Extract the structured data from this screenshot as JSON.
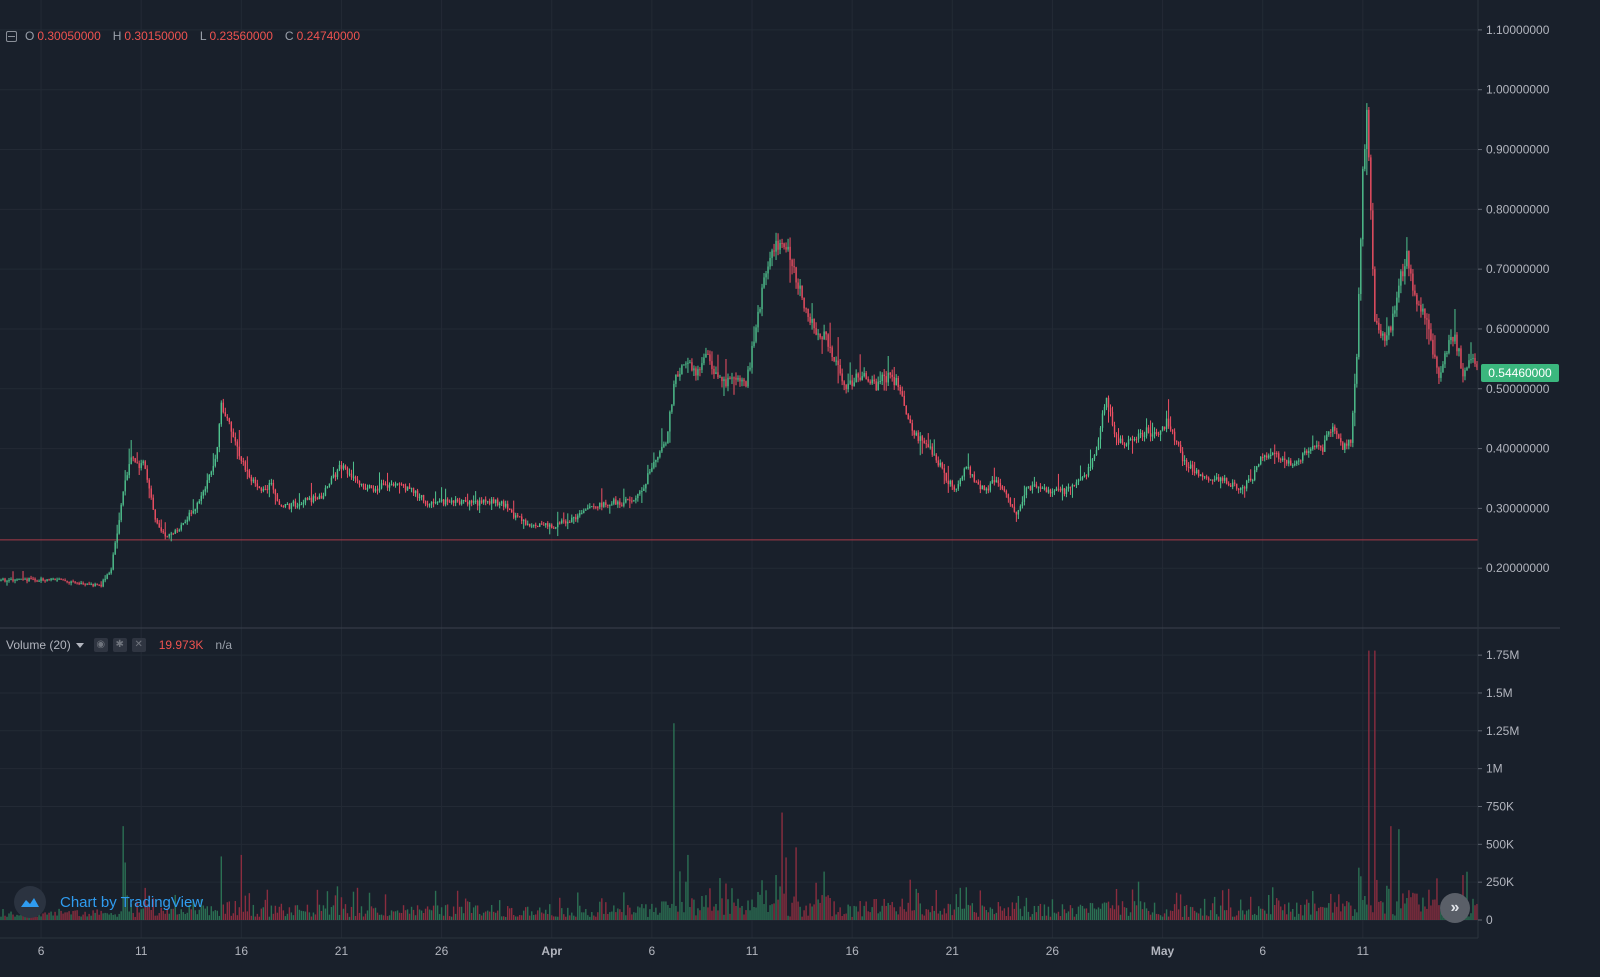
{
  "ohlc": {
    "o_label": "O",
    "o_value": "0.30050000",
    "h_label": "H",
    "h_value": "0.30150000",
    "l_label": "L",
    "l_value": "0.23560000",
    "c_label": "C",
    "c_value": "0.24740000"
  },
  "volume_legend": {
    "name": "Volume (20)",
    "value": "19.973K",
    "secondary": "n/a"
  },
  "last_price": "0.54460000",
  "brand": "Chart by TradingView",
  "colors": {
    "background": "#19202b",
    "grid": "#232a35",
    "up": "#4fc28e",
    "down": "#ef4f63",
    "up_volume": "#2b7053",
    "down_volume": "#8a2d3f",
    "price_line": "#a83a48",
    "axis_text": "#b2b5be",
    "accent": "#2f9cf0"
  },
  "chart_data": [
    {
      "type": "candlestick",
      "name": "price",
      "ylim": [
        0.1,
        1.15
      ],
      "y_ticks": [
        "1.10000000",
        "1.00000000",
        "0.90000000",
        "0.80000000",
        "0.70000000",
        "0.60000000",
        "0.50000000",
        "0.40000000",
        "0.30000000",
        "0.20000000"
      ],
      "y_tick_values": [
        1.1,
        1.0,
        0.9,
        0.8,
        0.7,
        0.6,
        0.5,
        0.4,
        0.3,
        0.2
      ],
      "x_ticks": [
        "6",
        "11",
        "16",
        "21",
        "26",
        "Apr",
        "6",
        "11",
        "16",
        "21",
        "26",
        "May",
        "6",
        "11"
      ],
      "x_tick_index": [
        20,
        70,
        120,
        170,
        220,
        275,
        325,
        375,
        425,
        475,
        525,
        580,
        630,
        680
      ],
      "horizontal_line": 0.2474,
      "grid": true,
      "last_price": 0.5446
    },
    {
      "type": "bar",
      "name": "Volume",
      "ylim": [
        0,
        1850000
      ],
      "y_ticks": [
        "1.75M",
        "1.5M",
        "1.25M",
        "1M",
        "750K",
        "500K",
        "250K",
        "0"
      ],
      "y_tick_values": [
        1750000,
        1500000,
        1250000,
        1000000,
        750000,
        500000,
        250000,
        0
      ],
      "grid": true
    }
  ],
  "anchors": [
    [
      0,
      0.18
    ],
    [
      28,
      0.18
    ],
    [
      50,
      0.17
    ],
    [
      55,
      0.2
    ],
    [
      58,
      0.26
    ],
    [
      62,
      0.35
    ],
    [
      65,
      0.38
    ],
    [
      72,
      0.37
    ],
    [
      77,
      0.28
    ],
    [
      82,
      0.25
    ],
    [
      87,
      0.26
    ],
    [
      92,
      0.28
    ],
    [
      97,
      0.3
    ],
    [
      102,
      0.33
    ],
    [
      107,
      0.38
    ],
    [
      110,
      0.47
    ],
    [
      115,
      0.43
    ],
    [
      120,
      0.38
    ],
    [
      125,
      0.35
    ],
    [
      130,
      0.33
    ],
    [
      135,
      0.34
    ],
    [
      140,
      0.3
    ],
    [
      150,
      0.31
    ],
    [
      160,
      0.32
    ],
    [
      165,
      0.35
    ],
    [
      170,
      0.37
    ],
    [
      175,
      0.35
    ],
    [
      185,
      0.33
    ],
    [
      195,
      0.34
    ],
    [
      205,
      0.33
    ],
    [
      212,
      0.31
    ],
    [
      220,
      0.31
    ],
    [
      235,
      0.31
    ],
    [
      245,
      0.31
    ],
    [
      250,
      0.31
    ],
    [
      255,
      0.29
    ],
    [
      265,
      0.27
    ],
    [
      275,
      0.27
    ],
    [
      285,
      0.28
    ],
    [
      295,
      0.3
    ],
    [
      305,
      0.31
    ],
    [
      315,
      0.31
    ],
    [
      320,
      0.33
    ],
    [
      327,
      0.38
    ],
    [
      332,
      0.41
    ],
    [
      337,
      0.52
    ],
    [
      342,
      0.55
    ],
    [
      347,
      0.52
    ],
    [
      352,
      0.56
    ],
    [
      357,
      0.52
    ],
    [
      362,
      0.51
    ],
    [
      367,
      0.52
    ],
    [
      372,
      0.5
    ],
    [
      377,
      0.6
    ],
    [
      382,
      0.7
    ],
    [
      387,
      0.73
    ],
    [
      392,
      0.74
    ],
    [
      397,
      0.69
    ],
    [
      402,
      0.63
    ],
    [
      407,
      0.6
    ],
    [
      412,
      0.58
    ],
    [
      417,
      0.54
    ],
    [
      422,
      0.5
    ],
    [
      427,
      0.52
    ],
    [
      432,
      0.52
    ],
    [
      437,
      0.5
    ],
    [
      442,
      0.52
    ],
    [
      447,
      0.51
    ],
    [
      452,
      0.46
    ],
    [
      457,
      0.42
    ],
    [
      462,
      0.41
    ],
    [
      467,
      0.38
    ],
    [
      472,
      0.35
    ],
    [
      477,
      0.33
    ],
    [
      482,
      0.37
    ],
    [
      487,
      0.34
    ],
    [
      492,
      0.33
    ],
    [
      497,
      0.35
    ],
    [
      502,
      0.32
    ],
    [
      507,
      0.29
    ],
    [
      512,
      0.33
    ],
    [
      517,
      0.34
    ],
    [
      522,
      0.33
    ],
    [
      527,
      0.33
    ],
    [
      532,
      0.33
    ],
    [
      537,
      0.34
    ],
    [
      542,
      0.36
    ],
    [
      547,
      0.4
    ],
    [
      552,
      0.49
    ],
    [
      557,
      0.41
    ],
    [
      562,
      0.41
    ],
    [
      567,
      0.42
    ],
    [
      572,
      0.43
    ],
    [
      577,
      0.42
    ],
    [
      582,
      0.44
    ],
    [
      587,
      0.41
    ],
    [
      592,
      0.37
    ],
    [
      597,
      0.36
    ],
    [
      602,
      0.35
    ],
    [
      610,
      0.35
    ],
    [
      618,
      0.33
    ],
    [
      625,
      0.35
    ],
    [
      630,
      0.39
    ],
    [
      635,
      0.39
    ],
    [
      640,
      0.38
    ],
    [
      645,
      0.37
    ],
    [
      650,
      0.39
    ],
    [
      655,
      0.4
    ],
    [
      660,
      0.4
    ],
    [
      665,
      0.44
    ],
    [
      670,
      0.4
    ],
    [
      674,
      0.41
    ],
    [
      677,
      0.55
    ],
    [
      680,
      0.85
    ],
    [
      682,
      0.96
    ],
    [
      686,
      0.62
    ],
    [
      690,
      0.58
    ],
    [
      694,
      0.6
    ],
    [
      698,
      0.68
    ],
    [
      702,
      0.72
    ],
    [
      706,
      0.65
    ],
    [
      710,
      0.63
    ],
    [
      714,
      0.58
    ],
    [
      718,
      0.52
    ],
    [
      722,
      0.57
    ],
    [
      726,
      0.59
    ],
    [
      730,
      0.52
    ],
    [
      734,
      0.55
    ],
    [
      736,
      0.54
    ]
  ],
  "volume_spikes": [
    [
      61,
      620000
    ],
    [
      62,
      380000
    ],
    [
      110,
      420000
    ],
    [
      120,
      430000
    ],
    [
      336,
      1300000
    ],
    [
      343,
      430000
    ],
    [
      390,
      710000
    ],
    [
      397,
      480000
    ],
    [
      683,
      1780000
    ],
    [
      686,
      1780000
    ],
    [
      698,
      600000
    ],
    [
      694,
      620000
    ]
  ]
}
